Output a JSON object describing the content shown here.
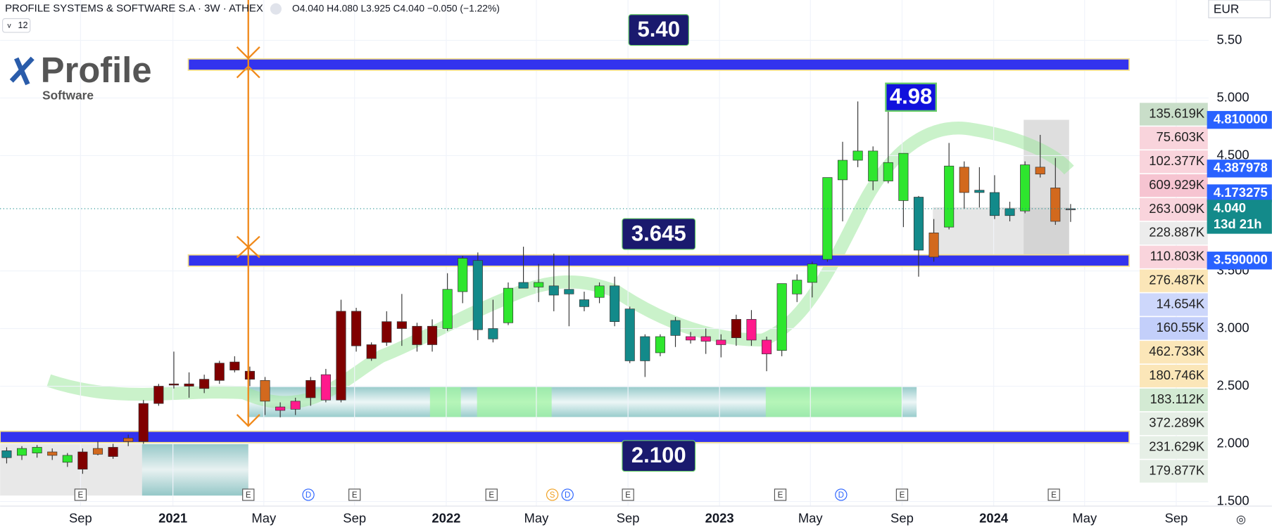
{
  "header": {
    "symbol": "PROFILE SYSTEMS & SOFTWARE S.A · 3W · ATHEX",
    "ohlc": "O4.040 H4.080 L3.925 C4.040 −0.050 (−1.22%)",
    "interval": "12",
    "currency": "EUR"
  },
  "logo": {
    "name": "Profile",
    "sub": "Software"
  },
  "annotations": [
    "5.40",
    "3.645",
    "2.100",
    "4.98"
  ],
  "chart_data": {
    "type": "candlestick",
    "xlim": [
      -0.43,
      79.08
    ],
    "ylim": [
      1.46,
      5.85
    ],
    "xticks": [
      {
        "value": 4.86,
        "label": "Sep"
      },
      {
        "value": 10.94,
        "label": "2021"
      },
      {
        "value": 16.92,
        "label": "May"
      },
      {
        "value": 22.89,
        "label": "Sep"
      },
      {
        "value": 28.92,
        "label": "2022"
      },
      {
        "value": 34.85,
        "label": "May"
      },
      {
        "value": 40.88,
        "label": "Sep"
      },
      {
        "value": 46.9,
        "label": "2023"
      },
      {
        "value": 52.88,
        "label": "May"
      },
      {
        "value": 58.91,
        "label": "Sep"
      },
      {
        "value": 64.94,
        "label": "2024"
      },
      {
        "value": 70.92,
        "label": "May"
      },
      {
        "value": 76.95,
        "label": "Sep"
      }
    ],
    "yticks": [
      {
        "value": 5.5,
        "label": "5.50"
      },
      {
        "value": 5,
        "label": "5.000"
      },
      {
        "value": 4.5,
        "label": "4.500"
      },
      {
        "value": 3.5,
        "label": "3.500"
      },
      {
        "value": 3,
        "label": "3.000"
      },
      {
        "value": 2.5,
        "label": "2.500"
      },
      {
        "value": 2,
        "label": "2.000"
      },
      {
        "value": 1.5,
        "label": "1.500"
      }
    ],
    "levels": [
      5.29,
      3.59,
      2.06
    ],
    "candles": [
      {
        "o": 1.88,
        "h": 1.97,
        "l": 1.83,
        "c": 1.94,
        "color": "#138a8a"
      },
      {
        "o": 1.9,
        "h": 1.98,
        "l": 1.86,
        "c": 1.96,
        "color": "#2ee62e"
      },
      {
        "o": 1.92,
        "h": 1.99,
        "l": 1.88,
        "c": 1.97,
        "color": "#2ee62e"
      },
      {
        "o": 1.93,
        "h": 1.96,
        "l": 1.86,
        "c": 1.9,
        "color": "#d2691e"
      },
      {
        "o": 1.84,
        "h": 1.92,
        "l": 1.8,
        "c": 1.9,
        "color": "#2ee62e"
      },
      {
        "o": 1.78,
        "h": 1.96,
        "l": 1.74,
        "c": 1.93,
        "color": "#800000"
      },
      {
        "o": 1.96,
        "h": 2.02,
        "l": 1.9,
        "c": 1.91,
        "color": "#d2691e"
      },
      {
        "o": 1.89,
        "h": 2.0,
        "l": 1.87,
        "c": 1.97,
        "color": "#800000"
      },
      {
        "o": 2.02,
        "h": 2.08,
        "l": 1.98,
        "c": 2.05,
        "color": "#d2691e"
      },
      {
        "o": 2.02,
        "h": 2.38,
        "l": 2.0,
        "c": 2.35,
        "color": "#800000"
      },
      {
        "o": 2.35,
        "h": 2.52,
        "l": 2.33,
        "c": 2.5,
        "color": "#800000"
      },
      {
        "o": 2.51,
        "h": 2.8,
        "l": 2.48,
        "c": 2.52,
        "color": "#800000"
      },
      {
        "o": 2.5,
        "h": 2.62,
        "l": 2.4,
        "c": 2.52,
        "color": "#800000"
      },
      {
        "o": 2.48,
        "h": 2.6,
        "l": 2.44,
        "c": 2.56,
        "color": "#800000"
      },
      {
        "o": 2.55,
        "h": 2.72,
        "l": 2.52,
        "c": 2.7,
        "color": "#800000"
      },
      {
        "o": 2.71,
        "h": 2.76,
        "l": 2.62,
        "c": 2.64,
        "color": "#800000"
      },
      {
        "o": 2.63,
        "h": 2.67,
        "l": 2.5,
        "c": 2.56,
        "color": "#800000"
      },
      {
        "o": 2.55,
        "h": 2.58,
        "l": 2.25,
        "c": 2.37,
        "color": "#d2691e"
      },
      {
        "o": 2.29,
        "h": 2.36,
        "l": 2.23,
        "c": 2.32,
        "color": "#ff1a8c"
      },
      {
        "o": 2.3,
        "h": 2.4,
        "l": 2.25,
        "c": 2.37,
        "color": "#ff1a8c"
      },
      {
        "o": 2.4,
        "h": 2.58,
        "l": 2.33,
        "c": 2.55,
        "color": "#800000"
      },
      {
        "o": 2.38,
        "h": 2.65,
        "l": 2.36,
        "c": 2.6,
        "color": "#ff1a8c"
      },
      {
        "o": 2.38,
        "h": 3.25,
        "l": 2.36,
        "c": 3.15,
        "color": "#800000"
      },
      {
        "o": 3.15,
        "h": 3.18,
        "l": 2.8,
        "c": 2.85,
        "color": "#800000"
      },
      {
        "o": 2.86,
        "h": 2.88,
        "l": 2.72,
        "c": 2.74,
        "color": "#800000"
      },
      {
        "o": 2.88,
        "h": 3.15,
        "l": 2.85,
        "c": 3.06,
        "color": "#800000"
      },
      {
        "o": 3.06,
        "h": 3.3,
        "l": 2.85,
        "c": 3.0,
        "color": "#800000"
      },
      {
        "o": 2.86,
        "h": 3.05,
        "l": 2.8,
        "c": 3.02,
        "color": "#800000"
      },
      {
        "o": 2.86,
        "h": 3.08,
        "l": 2.8,
        "c": 3.02,
        "color": "#800000"
      },
      {
        "o": 3.0,
        "h": 3.48,
        "l": 2.98,
        "c": 3.34,
        "color": "#2ee62e"
      },
      {
        "o": 3.32,
        "h": 3.63,
        "l": 3.22,
        "c": 3.61,
        "color": "#2ee62e"
      },
      {
        "o": 3.59,
        "h": 3.66,
        "l": 2.9,
        "c": 2.99,
        "color": "#138a8a"
      },
      {
        "o": 3.0,
        "h": 3.25,
        "l": 2.88,
        "c": 2.91,
        "color": "#138a8a"
      },
      {
        "o": 3.05,
        "h": 3.4,
        "l": 3.03,
        "c": 3.35,
        "color": "#2ee62e"
      },
      {
        "o": 3.4,
        "h": 3.71,
        "l": 3.35,
        "c": 3.35,
        "color": "#138a8a"
      },
      {
        "o": 3.36,
        "h": 3.56,
        "l": 3.23,
        "c": 3.4,
        "color": "#2ee62e"
      },
      {
        "o": 3.37,
        "h": 3.65,
        "l": 3.15,
        "c": 3.29,
        "color": "#138a8a"
      },
      {
        "o": 3.34,
        "h": 3.63,
        "l": 3.02,
        "c": 3.3,
        "color": "#138a8a"
      },
      {
        "o": 3.25,
        "h": 3.32,
        "l": 3.15,
        "c": 3.19,
        "color": "#138a8a"
      },
      {
        "o": 3.27,
        "h": 3.4,
        "l": 3.22,
        "c": 3.37,
        "color": "#2ee62e"
      },
      {
        "o": 3.37,
        "h": 3.45,
        "l": 3.02,
        "c": 3.06,
        "color": "#138a8a"
      },
      {
        "o": 3.17,
        "h": 3.19,
        "l": 2.7,
        "c": 2.72,
        "color": "#138a8a"
      },
      {
        "o": 2.93,
        "h": 2.95,
        "l": 2.58,
        "c": 2.72,
        "color": "#138a8a"
      },
      {
        "o": 2.79,
        "h": 2.95,
        "l": 2.76,
        "c": 2.93,
        "color": "#2ee62e"
      },
      {
        "o": 3.07,
        "h": 3.1,
        "l": 2.84,
        "c": 2.94,
        "color": "#138a8a"
      },
      {
        "o": 2.93,
        "h": 2.97,
        "l": 2.87,
        "c": 2.9,
        "color": "#ff1a8c"
      },
      {
        "o": 2.93,
        "h": 3.0,
        "l": 2.78,
        "c": 2.89,
        "color": "#ff1a8c"
      },
      {
        "o": 2.9,
        "h": 2.95,
        "l": 2.75,
        "c": 2.86,
        "color": "#ff1a8c"
      },
      {
        "o": 2.92,
        "h": 3.12,
        "l": 2.85,
        "c": 3.08,
        "color": "#800000"
      },
      {
        "o": 3.08,
        "h": 3.16,
        "l": 2.85,
        "c": 2.9,
        "color": "#ff1a8c"
      },
      {
        "o": 2.9,
        "h": 2.93,
        "l": 2.63,
        "c": 2.78,
        "color": "#ff1a8c"
      },
      {
        "o": 2.81,
        "h": 3.39,
        "l": 2.76,
        "c": 3.39,
        "color": "#2ee62e"
      },
      {
        "o": 3.3,
        "h": 3.47,
        "l": 3.23,
        "c": 3.42,
        "color": "#2ee62e"
      },
      {
        "o": 3.4,
        "h": 3.58,
        "l": 3.27,
        "c": 3.56,
        "color": "#2ee62e"
      },
      {
        "o": 3.6,
        "h": 4.3,
        "l": 3.58,
        "c": 4.31,
        "color": "#2ee62e"
      },
      {
        "o": 4.29,
        "h": 4.62,
        "l": 3.93,
        "c": 4.46,
        "color": "#2ee62e"
      },
      {
        "o": 4.46,
        "h": 4.97,
        "l": 4.4,
        "c": 4.54,
        "color": "#2ee62e"
      },
      {
        "o": 4.54,
        "h": 4.58,
        "l": 4.2,
        "c": 4.28,
        "color": "#2ee62e"
      },
      {
        "o": 4.28,
        "h": 4.91,
        "l": 4.26,
        "c": 4.44,
        "color": "#2ee62e"
      },
      {
        "o": 4.52,
        "h": 4.52,
        "l": 3.88,
        "c": 4.11,
        "color": "#2ee62e"
      },
      {
        "o": 4.14,
        "h": 4.15,
        "l": 3.45,
        "c": 3.68,
        "color": "#138a8a"
      },
      {
        "o": 3.62,
        "h": 3.95,
        "l": 3.58,
        "c": 3.83,
        "color": "#d2691e"
      },
      {
        "o": 3.88,
        "h": 4.61,
        "l": 3.86,
        "c": 4.41,
        "color": "#2ee62e"
      },
      {
        "o": 4.4,
        "h": 4.45,
        "l": 4.04,
        "c": 4.18,
        "color": "#d2691e"
      },
      {
        "o": 4.2,
        "h": 4.4,
        "l": 4.05,
        "c": 4.18,
        "color": "#138a8a"
      },
      {
        "o": 4.18,
        "h": 4.33,
        "l": 3.95,
        "c": 3.98,
        "color": "#138a8a"
      },
      {
        "o": 3.98,
        "h": 4.1,
        "l": 3.93,
        "c": 4.04,
        "color": "#138a8a"
      },
      {
        "o": 4.02,
        "h": 4.45,
        "l": 4.0,
        "c": 4.42,
        "color": "#2ee62e"
      },
      {
        "o": 4.4,
        "h": 4.68,
        "l": 4.31,
        "c": 4.34,
        "color": "#d2691e"
      },
      {
        "o": 4.22,
        "h": 4.48,
        "l": 3.9,
        "c": 3.93,
        "color": "#d2691e"
      },
      {
        "o": 4.04,
        "h": 4.08,
        "l": 3.925,
        "c": 4.04,
        "color": "#787b86"
      }
    ],
    "price_tags": [
      {
        "value": 4.81,
        "label": "4.810000",
        "color": "#2962ff"
      },
      {
        "value": 4.387978,
        "label": "4.387978",
        "color": "#2962ff"
      },
      {
        "value": 4.173275,
        "label": "4.173275",
        "color": "#2962ff"
      },
      {
        "value": 4.04,
        "label": "4.040",
        "color": "#138a8a"
      },
      {
        "value": 3.59,
        "label": "3.590000",
        "color": "#2962ff"
      }
    ],
    "countdown": "13d 21h",
    "profile": [
      {
        "label": "135.619K",
        "color": "#c9dec9"
      },
      {
        "label": "75.603K",
        "color": "#f9d4dc"
      },
      {
        "label": "102.377K",
        "color": "#f9d4dc"
      },
      {
        "label": "609.929K",
        "color": "#f6c4d1"
      },
      {
        "label": "263.009K",
        "color": "#f9d4dc"
      },
      {
        "label": "228.887K",
        "color": "#ececec"
      },
      {
        "label": "110.803K",
        "color": "#f9d4dc"
      },
      {
        "label": "276.487K",
        "color": "#fbe6b8"
      },
      {
        "label": "14.654K",
        "color": "#cdd7fb"
      },
      {
        "label": "160.55K",
        "color": "#c3cffa"
      },
      {
        "label": "462.733K",
        "color": "#fbe6b8"
      },
      {
        "label": "180.746K",
        "color": "#fbe6b8"
      },
      {
        "label": "183.112K",
        "color": "#d3ead3"
      },
      {
        "label": "372.289K",
        "color": "#e6efe6"
      },
      {
        "label": "231.629K",
        "color": "#e6efe6"
      },
      {
        "label": "179.877K",
        "color": "#e6efe6"
      }
    ],
    "events": [
      {
        "label": "E",
        "x": 4.86
      },
      {
        "label": "E",
        "x": 15.9
      },
      {
        "label": "D",
        "x": 19.85
      },
      {
        "label": "E",
        "x": 22.89
      },
      {
        "label": "E",
        "x": 31.9
      },
      {
        "label": "S",
        "x": 35.9
      },
      {
        "label": "D",
        "x": 36.9
      },
      {
        "label": "E",
        "x": 40.88
      },
      {
        "label": "E",
        "x": 50.9
      },
      {
        "label": "D",
        "x": 54.9
      },
      {
        "label": "E",
        "x": 58.91
      },
      {
        "label": "E",
        "x": 68.9
      }
    ]
  }
}
